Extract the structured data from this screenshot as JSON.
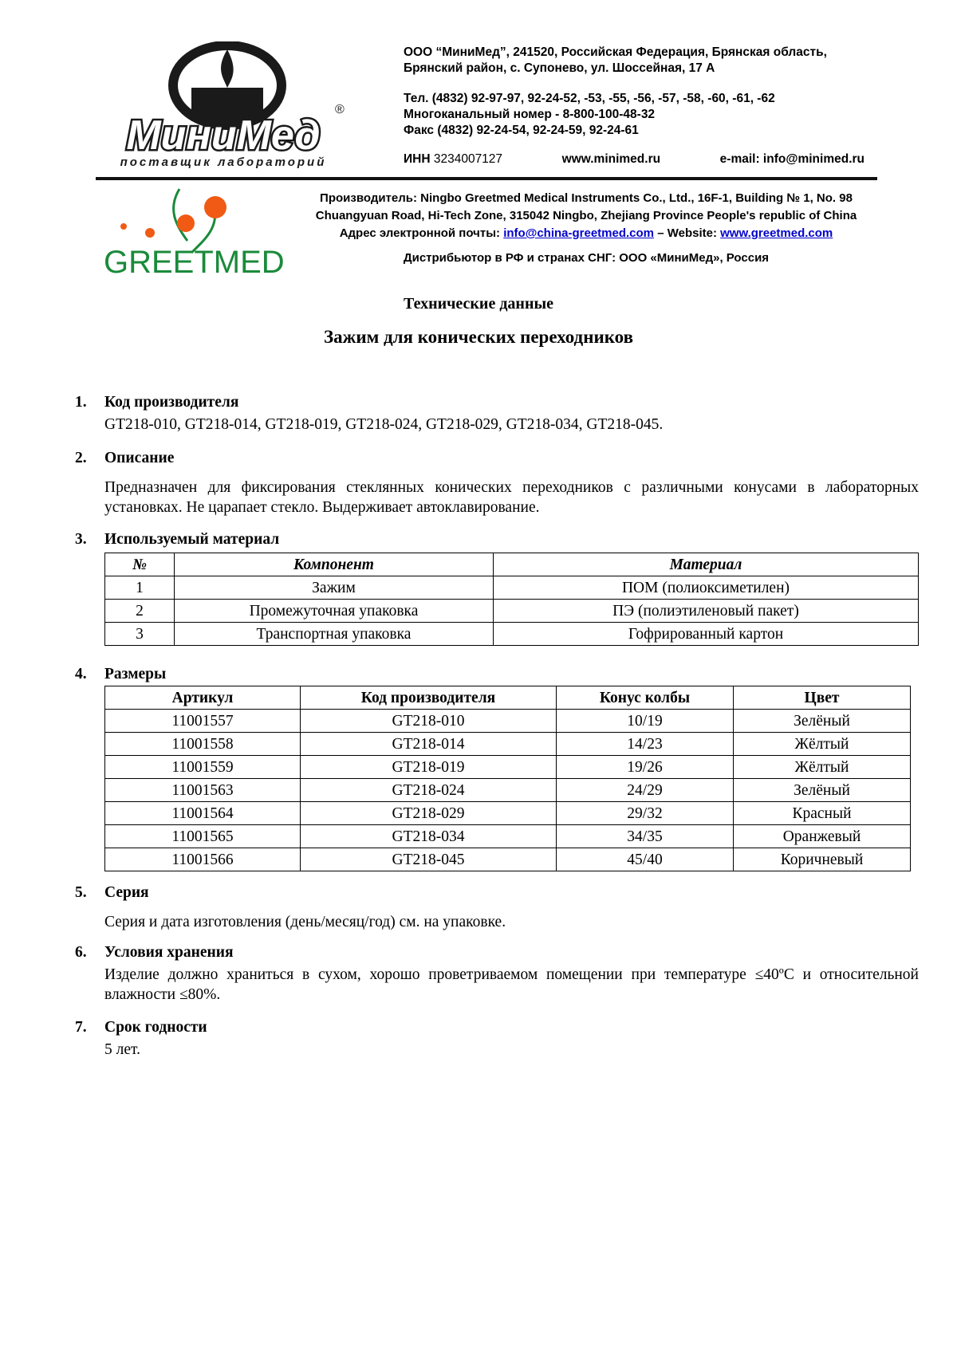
{
  "header": {
    "minimed_logo": {
      "name": "МиниМед",
      "tagline": "поставщик лабораторий"
    },
    "address": [
      "ООО “МиниМед”, 241520, Российская Федерация, Брянская область,",
      "Брянский район, с. Супонево, ул. Шоссейная, 17 А"
    ],
    "contacts": [
      "Тел. (4832) 92-97-97, 92-24-52, -53, -55, -56, -57, -58, -60, -61, -62",
      "Многоканальный номер - 8-800-100-48-32",
      "Факс (4832) 92-24-54, 92-24-59, 92-24-61"
    ],
    "inn_label": "ИНН",
    "inn_value": "3234007127",
    "website": "www.minimed.ru",
    "email": "e-mail: info@minimed.ru",
    "greetmed_logo": {
      "name": "GREETMED",
      "colors": {
        "green": "#1a8a3a",
        "orange": "#f05a14"
      }
    },
    "manufacturer": [
      "Производитель: Ningbo Greetmed Medical Instruments Co., Ltd., 16F-1, Building № 1, No. 98",
      "Chuangyuan Road, Hi-Tech Zone, 315042 Ningbo, Zhejiang Province People's republic of China"
    ],
    "email_label": "Адрес электронной почты:",
    "mfr_email": "info@china-greetmed.com",
    "website_label": "– Website:",
    "mfr_website": "www.greetmed.com",
    "distributor": "Дистрибьютор в РФ и странах СНГ: ООО «МиниМед», Россия"
  },
  "doc": {
    "subtitle": "Технические данные",
    "title": "Зажим для конических переходников"
  },
  "sections": [
    {
      "num": "1.",
      "title": "Код производителя",
      "text": "GT218-010, GT218-014, GT218-019, GT218-024, GT218-029, GT218-034, GT218-045."
    },
    {
      "num": "2.",
      "title": "Описание",
      "text": "Предназначен для фиксирования стеклянных конических переходников с различными конусами в лабораторных установках. Не царапает стекло. Выдерживает автоклавирование."
    },
    {
      "num": "3.",
      "title": "Используемый материал"
    },
    {
      "num": "4.",
      "title": "Размеры"
    },
    {
      "num": "5.",
      "title": "Серия",
      "text": "Серия и дата изготовления (день/месяц/год) см. на упаковке."
    },
    {
      "num": "6.",
      "title": "Условия хранения",
      "text": "Изделие должно храниться в сухом, хорошо проветриваемом помещении при температуре ≤40ºC и относительной влажности ≤80%."
    },
    {
      "num": "7.",
      "title": "Срок годности",
      "text": "5 лет."
    }
  ],
  "materials": {
    "headers": [
      "№",
      "Компонент",
      "Материал"
    ],
    "rows": [
      [
        "1",
        "Зажим",
        "ПОМ (полиоксиметилен)"
      ],
      [
        "2",
        "Промежуточная упаковка",
        "ПЭ (полиэтиленовый пакет)"
      ],
      [
        "3",
        "Транспортная упаковка",
        "Гофрированный картон"
      ]
    ]
  },
  "sizes": {
    "headers": [
      "Артикул",
      "Код производителя",
      "Конус колбы",
      "Цвет"
    ],
    "rows": [
      [
        "11001557",
        "GT218-010",
        "10/19",
        "Зелёный"
      ],
      [
        "11001558",
        "GT218-014",
        "14/23",
        "Жёлтый"
      ],
      [
        "11001559",
        "GT218-019",
        "19/26",
        "Жёлтый"
      ],
      [
        "11001563",
        "GT218-024",
        "24/29",
        "Зелёный"
      ],
      [
        "11001564",
        "GT218-029",
        "29/32",
        "Красный"
      ],
      [
        "11001565",
        "GT218-034",
        "34/35",
        "Оранжевый"
      ],
      [
        "11001566",
        "GT218-045",
        "45/40",
        "Коричневый"
      ]
    ]
  }
}
